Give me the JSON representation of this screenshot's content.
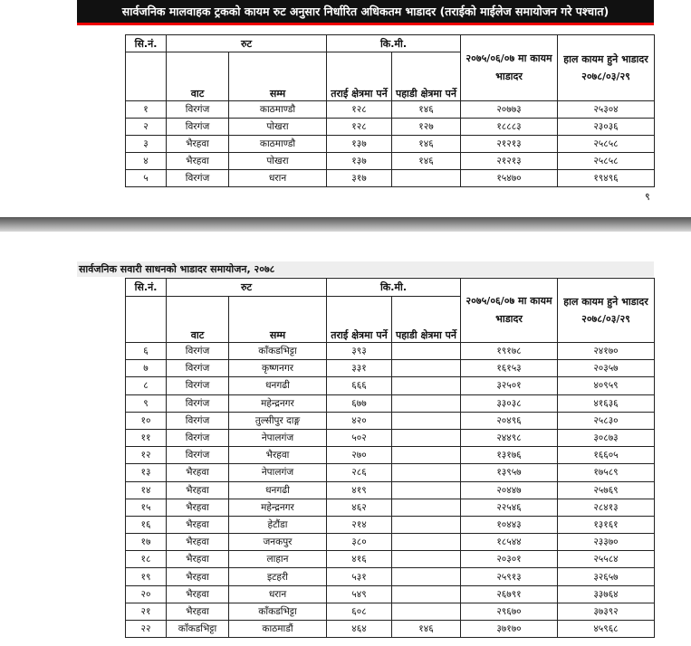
{
  "page1": {
    "banner": "सार्वजनिक मालवाहक ट्रकको कायम रुट अनुसार निर्धारित अधिकतम भाडादर (तराईको माईलेज समायोजन गरे पश्चात)",
    "page_number": "९"
  },
  "headers": {
    "sn": "सि.नं.",
    "route": "रुट",
    "km": "कि.मी.",
    "from": "वाट",
    "to": "सम्म",
    "terai": "तराई क्षेत्रमा पर्ने",
    "hill": "पहाडी क्षेत्रमा पर्ने",
    "old_rate": "२०७५/०६/०७ मा कायम भाडादर",
    "new_rate": "हाल कायम हुने भाडादर २०७८/०३/२९"
  },
  "table1": [
    [
      "१",
      "विरगंज",
      "काठमाण्डौ",
      "१२८",
      "१४६",
      "२०७७३",
      "२५३०४"
    ],
    [
      "२",
      "विरगंज",
      "पोखरा",
      "१२८",
      "१२७",
      "१८८८३",
      "२३०३६"
    ],
    [
      "३",
      "भैरहवा",
      "काठमाण्डौ",
      "१३७",
      "१४६",
      "२१२१३",
      "२५८५८"
    ],
    [
      "४",
      "भैरहवा",
      "पोखरा",
      "१३७",
      "१४६",
      "२१२१३",
      "२५८५८"
    ],
    [
      "५",
      "विरगंज",
      "धरान",
      "३१७",
      "",
      "१५४७०",
      "१९४९६"
    ]
  ],
  "page2": {
    "title": "सार्वजनिक सवारी साधनको भाडादर समायोजन, २०७८"
  },
  "table2": [
    [
      "६",
      "विरगंज",
      "काँकडभिट्टा",
      "३९३",
      "",
      "१९१७८",
      "२४१७०"
    ],
    [
      "७",
      "विरगंज",
      "कृष्णनगर",
      "३३१",
      "",
      "१६१५३",
      "२०३५७"
    ],
    [
      "८",
      "विरगंज",
      "धनगढी",
      "६६६",
      "",
      "३२५०१",
      "४०९५९"
    ],
    [
      "९",
      "विरगंज",
      "महेन्द्रनगर",
      "६७७",
      "",
      "३३०३८",
      "४१६३६"
    ],
    [
      "१०",
      "विरगंज",
      "तुल्सीपुर दाङ्ग",
      "४२०",
      "",
      "२०४९६",
      "२५८३०"
    ],
    [
      "११",
      "विरगंज",
      "नेपालगंज",
      "५०२",
      "",
      "२४४९८",
      "३०८७३"
    ],
    [
      "१२",
      "विरगंज",
      "भैरहवा",
      "२७०",
      "",
      "१३१७६",
      "१६६०५"
    ],
    [
      "१३",
      "भैरहवा",
      "नेपालगंज",
      "२८६",
      "",
      "१३९५७",
      "१७५८९"
    ],
    [
      "१४",
      "भैरहवा",
      "धनगढी",
      "४१९",
      "",
      "२०४४७",
      "२५७६९"
    ],
    [
      "१५",
      "भैरहवा",
      "महेन्द्रनगर",
      "४६२",
      "",
      "२२५४६",
      "२८४१३"
    ],
    [
      "१६",
      "भैरहवा",
      "हेटौंडा",
      "२१४",
      "",
      "१०४४३",
      "१३१६१"
    ],
    [
      "१७",
      "भैरहवा",
      "जनकपुर",
      "३८०",
      "",
      "१८५४४",
      "२३३७०"
    ],
    [
      "१८",
      "भैरहवा",
      "लाहान",
      "४१६",
      "",
      "२०३०१",
      "२५५८४"
    ],
    [
      "१९",
      "भैरहवा",
      "इटहरी",
      "५३१",
      "",
      "२५९१३",
      "३२६५७"
    ],
    [
      "२०",
      "भैरहवा",
      "धरान",
      "५४९",
      "",
      "२६७९१",
      "३३७६४"
    ],
    [
      "२१",
      "भैरहवा",
      "काँकडभिट्टा",
      "६०८",
      "",
      "२९६७०",
      "३७३९२"
    ],
    [
      "२२",
      "काँकडभिट्टा",
      "काठमाडौं",
      "४६४",
      "१४६",
      "३७१७०",
      "४५९६८"
    ]
  ],
  "colors": {
    "banner_bg": "#111111",
    "banner_rule": "#e00000"
  }
}
